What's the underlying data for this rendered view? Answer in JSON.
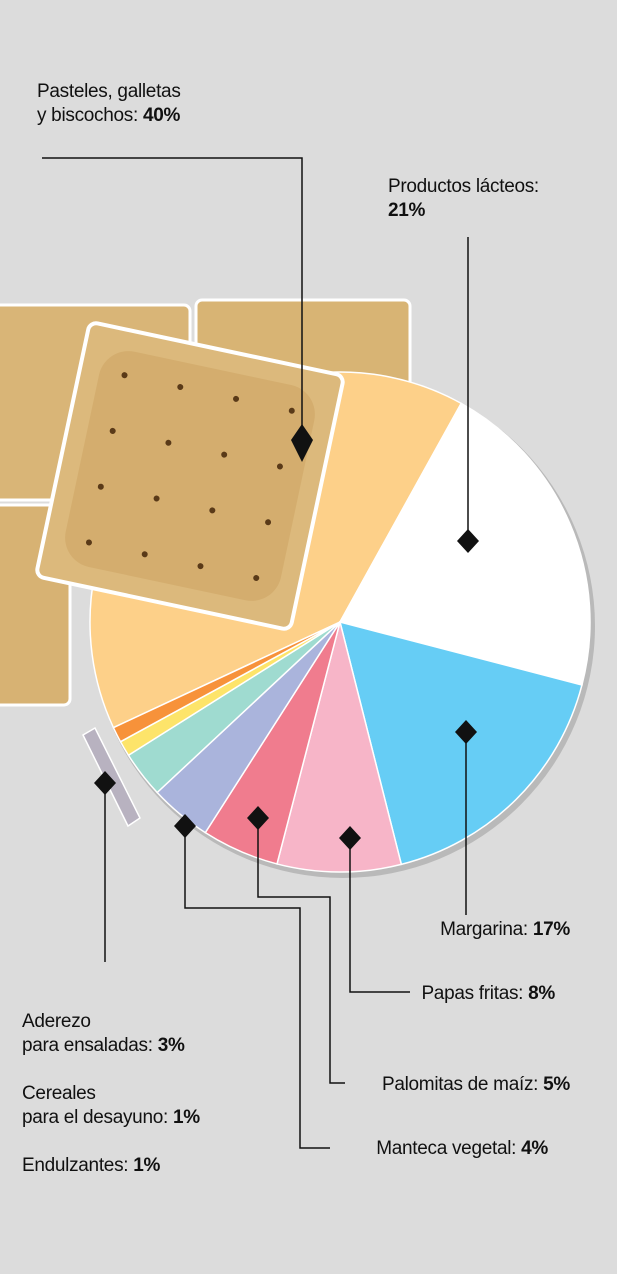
{
  "chart_data": {
    "type": "pie",
    "categories": [
      "Pasteles, galletas\ny biscochos: ",
      "Productos lácteos:\n",
      "Margarina: ",
      "Papas fritas: ",
      "Palomitas de maíz: ",
      "Manteca vegetal: ",
      "Aderezo\npara ensaladas: ",
      "Cereales\npara el desayuno: ",
      "Endulzantes: "
    ],
    "values": [
      40,
      21,
      17,
      8,
      5,
      4,
      3,
      1,
      1
    ],
    "value_labels": [
      "40%",
      "21%",
      "17%",
      "8%",
      "5%",
      "4%",
      "3%",
      "1%",
      "1%"
    ],
    "colors": [
      "#fdd089",
      "#ffffff",
      "#66cdf5",
      "#f7b5c8",
      "#f07c8e",
      "#aab4dc",
      "#9fdbd0",
      "#fde46a",
      "#f7923a"
    ]
  }
}
